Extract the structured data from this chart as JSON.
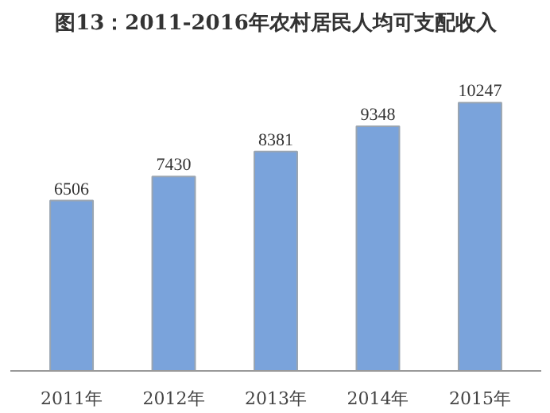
{
  "chart_data": {
    "type": "bar",
    "title": "图13：2011-2016年农村居民人均可支配收入",
    "categories": [
      "2011年",
      "2012年",
      "2013年",
      "2014年",
      "2015年"
    ],
    "values": [
      6506,
      7430,
      8381,
      9348,
      10247
    ],
    "color": "#7aa3db",
    "data_labels": true
  }
}
